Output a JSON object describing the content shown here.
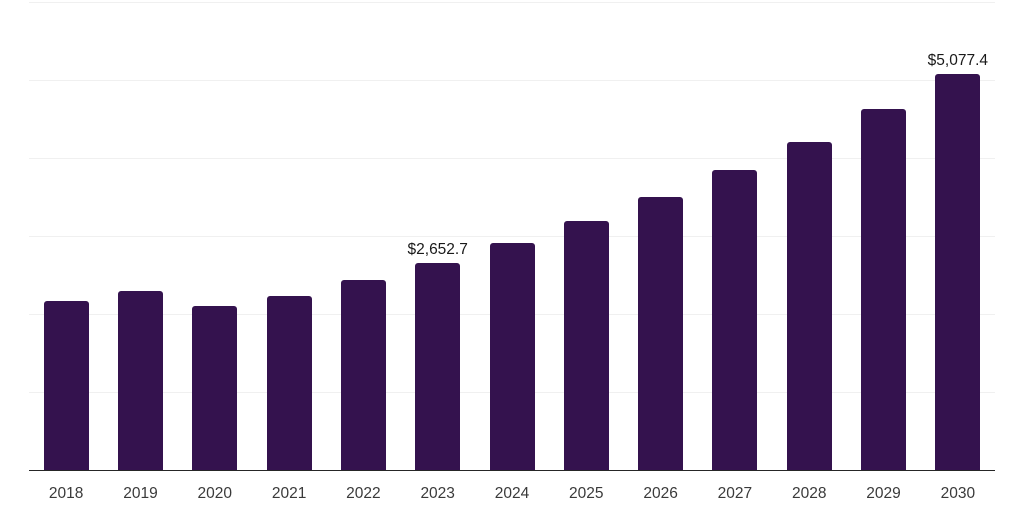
{
  "chart_data": {
    "type": "bar",
    "title": "",
    "xlabel": "",
    "ylabel": "",
    "categories": [
      "2018",
      "2019",
      "2020",
      "2021",
      "2022",
      "2023",
      "2024",
      "2025",
      "2026",
      "2027",
      "2028",
      "2029",
      "2030"
    ],
    "values": [
      2170,
      2300,
      2100,
      2230,
      2440,
      2652.7,
      2910,
      3190,
      3500,
      3840,
      4200,
      4630,
      5077.4
    ],
    "data_labels": {
      "2023": "$2,652.7",
      "2030": "$5,077.4"
    },
    "ylim": [
      0,
      6000
    ],
    "grid_interval": 1000,
    "grid": true,
    "legend": false,
    "bar_color": "#34124E",
    "gridline_color": "#f0f0f0",
    "axis_line_color": "#262626",
    "tick_label_color": "#3a3a3a",
    "data_label_color": "#1a1a1a",
    "background_color": "#ffffff"
  }
}
